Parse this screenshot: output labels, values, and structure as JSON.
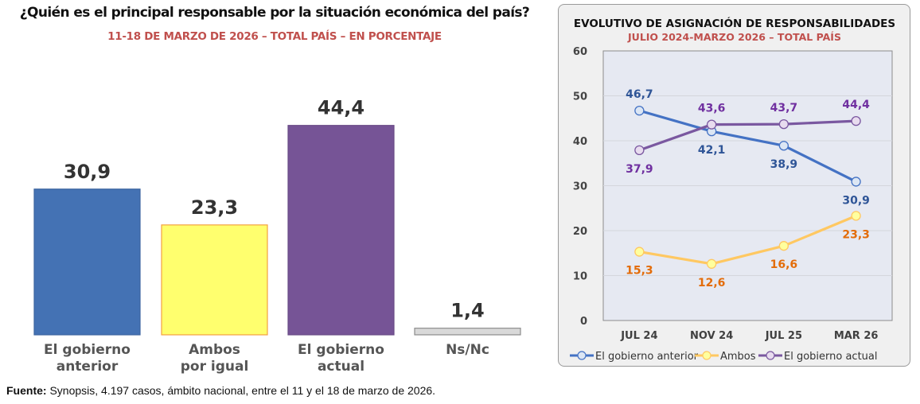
{
  "chart_data": [
    {
      "type": "bar",
      "title": "¿Quién es el principal responsable por la situación económica del país?",
      "subtitle": "11-18 DE MARZO DE 2026 – TOTAL PAÍS – EN PORCENTAJE",
      "categories": [
        [
          "El gobierno",
          "anterior"
        ],
        [
          "Ambos",
          "por igual"
        ],
        [
          "El gobierno",
          "actual"
        ],
        [
          "Ns/Nc"
        ]
      ],
      "values": [
        30.9,
        23.3,
        44.4,
        1.4
      ],
      "value_labels": [
        "30,9",
        "23,3",
        "44,4",
        "1,4"
      ],
      "colors": [
        "#4472b4",
        "#ffff6e",
        "#765496",
        "#d9d9d9"
      ],
      "border_colors": [
        "#3c65a0",
        "#f4a040",
        "#684a86",
        "#8c8c8c"
      ],
      "ylim": [
        0,
        50
      ],
      "grid": false,
      "xlabel": "",
      "ylabel": ""
    },
    {
      "type": "line",
      "title": "EVOLUTIVO DE ASIGNACIÓN DE RESPONSABILIDADES",
      "subtitle": "JULIO 2024-MARZO 2026 – TOTAL PAÍS",
      "x": [
        "JUL 24",
        "NOV 24",
        "JUL 25",
        "MAR 26"
      ],
      "ylim": [
        0,
        60
      ],
      "yticks": [
        0,
        10,
        20,
        30,
        40,
        50,
        60
      ],
      "grid": true,
      "legend_position": "bottom",
      "series": [
        {
          "name": "El gobierno anterior",
          "values": [
            46.7,
            42.1,
            38.9,
            30.9
          ],
          "labels": [
            "46,7",
            "42,1",
            "38,9",
            "30,9"
          ],
          "label_pos": [
            "above",
            "below",
            "below",
            "below"
          ],
          "color": "#4472c4",
          "label_color": "#2f5597",
          "marker_fill": "#dce6f4"
        },
        {
          "name": "Ambos",
          "values": [
            15.3,
            12.6,
            16.6,
            23.3
          ],
          "labels": [
            "15,3",
            "12,6",
            "16,6",
            "23,3"
          ],
          "label_pos": [
            "below",
            "below",
            "below",
            "below"
          ],
          "color": "#ffc862",
          "label_color": "#e36c09",
          "marker_fill": "#ffff9e"
        },
        {
          "name": "El gobierno actual",
          "values": [
            37.9,
            43.6,
            43.7,
            44.4
          ],
          "labels": [
            "37,9",
            "43,6",
            "43,7",
            "44,4"
          ],
          "label_pos": [
            "below",
            "above",
            "above",
            "above"
          ],
          "color": "#7a58a0",
          "label_color": "#7030a0",
          "marker_fill": "#e8dcef"
        }
      ]
    }
  ],
  "page": {
    "title": "¿Quién es el principal responsable por la situación económica del país?",
    "subtitle": "11-18 DE MARZO DE 2026 – TOTAL PAÍS – EN PORCENTAJE",
    "source_label": "Fuente:",
    "source_text": " Synopsis, 4.197 casos, ámbito nacional, entre el 11 y el 18 de marzo de 2026."
  }
}
